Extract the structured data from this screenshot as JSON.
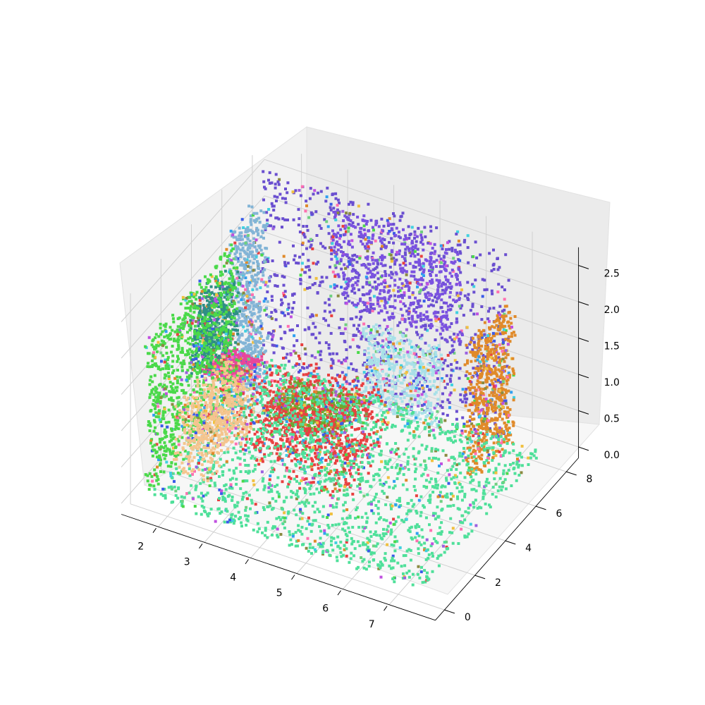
{
  "chart_data": {
    "type": "scatter",
    "projection": "3d",
    "title": "",
    "xlabel": "",
    "ylabel": "",
    "zlabel": "",
    "xlim": [
      1.2,
      8.0
    ],
    "ylim": [
      -0.6,
      8.8
    ],
    "zlim": [
      -0.15,
      2.75
    ],
    "x_ticks": [
      2,
      3,
      4,
      5,
      6,
      7
    ],
    "x_tick_labels": [
      "2",
      "3",
      "4",
      "5",
      "6",
      "7"
    ],
    "y_ticks": [
      0,
      2,
      4,
      6,
      8
    ],
    "y_tick_labels": [
      "0",
      "2",
      "4",
      "6",
      "8"
    ],
    "z_ticks": [
      0.0,
      0.5,
      1.0,
      1.5,
      2.0,
      2.5
    ],
    "z_tick_labels": [
      "0.0",
      "0.5",
      "1.0",
      "1.5",
      "2.0",
      "2.5"
    ],
    "grid": true,
    "legend": "none",
    "point_cloud": "colored segmented indoor room scan: walls, cabinets, table with chairs, floor",
    "segments": [
      {
        "name": "left wall",
        "color": "#4ad94a",
        "x": [
          1.4,
          1.6
        ],
        "y": [
          0.3,
          6.0
        ],
        "z": [
          0.0,
          2.1
        ]
      },
      {
        "name": "back wall",
        "color": "#6a4fd0",
        "x": [
          1.5,
          6.8
        ],
        "y": [
          7.6,
          7.9
        ],
        "z": [
          0.0,
          2.7
        ]
      },
      {
        "name": "wall cabinet",
        "color": "#2e8f84",
        "x": [
          1.6,
          2.0
        ],
        "y": [
          2.5,
          4.8
        ],
        "z": [
          1.1,
          2.1
        ]
      },
      {
        "name": "tall cabinet",
        "color": "#82b4d6",
        "x": [
          1.6,
          2.0
        ],
        "y": [
          5.0,
          6.8
        ],
        "z": [
          0.0,
          2.5
        ]
      },
      {
        "name": "counter",
        "color": "#f4c58e",
        "x": [
          1.6,
          2.4
        ],
        "y": [
          1.5,
          4.8
        ],
        "z": [
          0.0,
          0.9
        ]
      },
      {
        "name": "countertop",
        "color": "#e8479a",
        "x": [
          1.6,
          2.4
        ],
        "y": [
          3.5,
          5.0
        ],
        "z": [
          0.85,
          0.95
        ]
      },
      {
        "name": "window",
        "color": "#7a52e0",
        "x": [
          3.0,
          5.8
        ],
        "y": [
          7.6,
          7.9
        ],
        "z": [
          1.2,
          2.5
        ]
      },
      {
        "name": "fireplace",
        "color": "#a8e0e8",
        "x": [
          3.8,
          5.4
        ],
        "y": [
          7.2,
          7.8
        ],
        "z": [
          0.0,
          1.1
        ]
      },
      {
        "name": "table",
        "color": "#6fa830",
        "x": [
          3.0,
          4.6
        ],
        "y": [
          3.0,
          5.2
        ],
        "z": [
          0.7,
          0.8
        ]
      },
      {
        "name": "chairs",
        "color": "#e84040",
        "x": [
          2.6,
          5.0
        ],
        "y": [
          2.6,
          5.6
        ],
        "z": [
          0.0,
          1.0
        ]
      },
      {
        "name": "right wall",
        "color": "#e08a2a",
        "x": [
          6.6,
          6.9
        ],
        "y": [
          5.5,
          8.0
        ],
        "z": [
          0.0,
          1.9
        ]
      },
      {
        "name": "floor",
        "color": "#4fe09a",
        "x": [
          1.6,
          7.5
        ],
        "y": [
          0.0,
          8.0
        ],
        "z": [
          0.0,
          0.05
        ]
      }
    ]
  }
}
